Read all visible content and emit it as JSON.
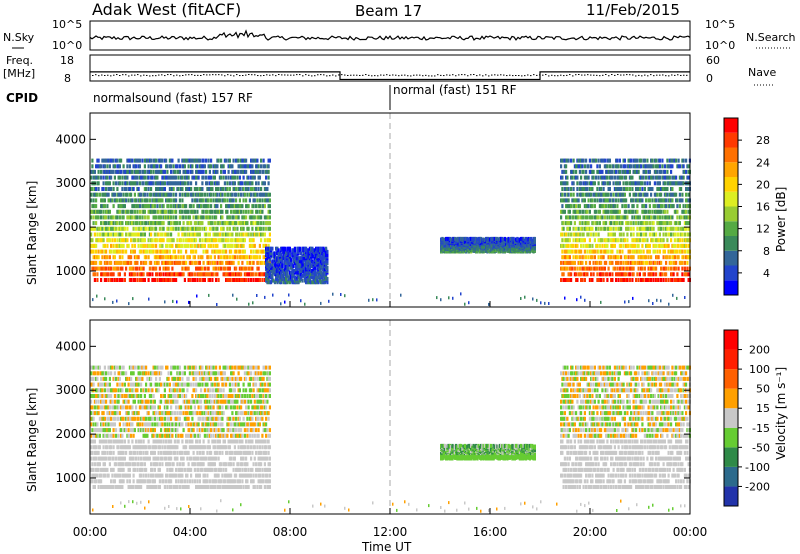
{
  "header": {
    "title": "Adak West (fitACF)",
    "beam": "Beam 17",
    "date": "11/Feb/2015"
  },
  "top_panels": {
    "nsky_label": "N.Sky",
    "nsky_ticks": [
      "10^5",
      "10^0"
    ],
    "nsearch_label": "N.Search",
    "nsearch_ticks": [
      "10^5",
      "10^0"
    ],
    "freq_label": "Freq.",
    "freq_unit": "[MHz]",
    "freq_ticks": [
      "18",
      "8"
    ],
    "nave_label": "Nave",
    "nave_ticks": [
      "60",
      "0"
    ],
    "cpid_label": "CPID",
    "cpid_segments": [
      {
        "label": "normalsound (fast) 157 RF",
        "start_hour": 0,
        "end_hour": 12
      },
      {
        "label": "normal (fast) 151 RF",
        "start_hour": 12,
        "end_hour": 24
      }
    ],
    "freq_steps": [
      {
        "start_hour": 0,
        "end_hour": 10,
        "mhz": 11.5
      },
      {
        "start_hour": 10,
        "end_hour": 18,
        "mhz": 8.6
      },
      {
        "start_hour": 18,
        "end_hour": 24,
        "mhz": 11.5
      }
    ]
  },
  "chart_data": [
    {
      "type": "heatmap",
      "panel": "power",
      "xlabel": "Time UT",
      "ylabel": "Slant Range [km]",
      "x_range_hours": [
        0,
        24
      ],
      "ylim_km": [
        180,
        4600
      ],
      "y_ticks": [
        "1000",
        "2000",
        "3000",
        "4000"
      ],
      "colorbar": {
        "label": "Power [dB]",
        "ticks": [
          "28",
          "24",
          "20",
          "16",
          "12",
          "8",
          "4"
        ],
        "colors": [
          "#0000ff",
          "#2244cc",
          "#336699",
          "#3a8a5a",
          "#55aa44",
          "#99cc33",
          "#ddee22",
          "#ffd200",
          "#ffa500",
          "#ff7000",
          "#ff3a00",
          "#ff0000"
        ],
        "range": [
          0,
          30
        ]
      },
      "echo_regions": [
        {
          "t_start": 0.0,
          "t_end": 7.2,
          "range_low_km": 750,
          "range_high_km": 3600,
          "core_db": 28,
          "edge_db": 6
        },
        {
          "t_start": 7.0,
          "t_end": 9.5,
          "range_low_km": 700,
          "range_high_km": 1500,
          "core_db": 6,
          "edge_db": 3
        },
        {
          "t_start": 14.0,
          "t_end": 17.8,
          "range_low_km": 1400,
          "range_high_km": 1700,
          "core_db": 10,
          "edge_db": 4
        },
        {
          "t_start": 18.8,
          "t_end": 24.0,
          "range_low_km": 750,
          "range_high_km": 3600,
          "core_db": 28,
          "edge_db": 6
        }
      ]
    },
    {
      "type": "heatmap",
      "panel": "velocity",
      "xlabel": "Time UT",
      "ylabel": "Slant Range [km]",
      "x_range_hours": [
        0,
        24
      ],
      "ylim_km": [
        180,
        4600
      ],
      "y_ticks": [
        "1000",
        "2000",
        "3000",
        "4000"
      ],
      "colorbar": {
        "label": "Velocity [m s⁻¹]",
        "ticks": [
          "200",
          "100",
          "50",
          "15",
          "-15",
          "-50",
          "-100",
          "-200"
        ],
        "colors": [
          "#2233aa",
          "#2c6a8c",
          "#2f8a48",
          "#66cc33",
          "#c8c8c8",
          "#ffa000",
          "#ff6000",
          "#ff2000",
          "#ff0000"
        ],
        "range": [
          -250,
          250
        ]
      },
      "echo_regions": [
        {
          "t_start": 0.0,
          "t_end": 7.2,
          "range_low_km": 750,
          "range_high_km": 3600,
          "typical_velocity": 0
        },
        {
          "t_start": 14.0,
          "t_end": 17.8,
          "range_low_km": 1400,
          "range_high_km": 1700,
          "typical_velocity": -60
        },
        {
          "t_start": 18.8,
          "t_end": 24.0,
          "range_low_km": 750,
          "range_high_km": 3600,
          "typical_velocity": 0
        }
      ]
    }
  ],
  "x_ticks": [
    "00:00",
    "04:00",
    "08:00",
    "12:00",
    "16:00",
    "20:00",
    "00:00"
  ]
}
